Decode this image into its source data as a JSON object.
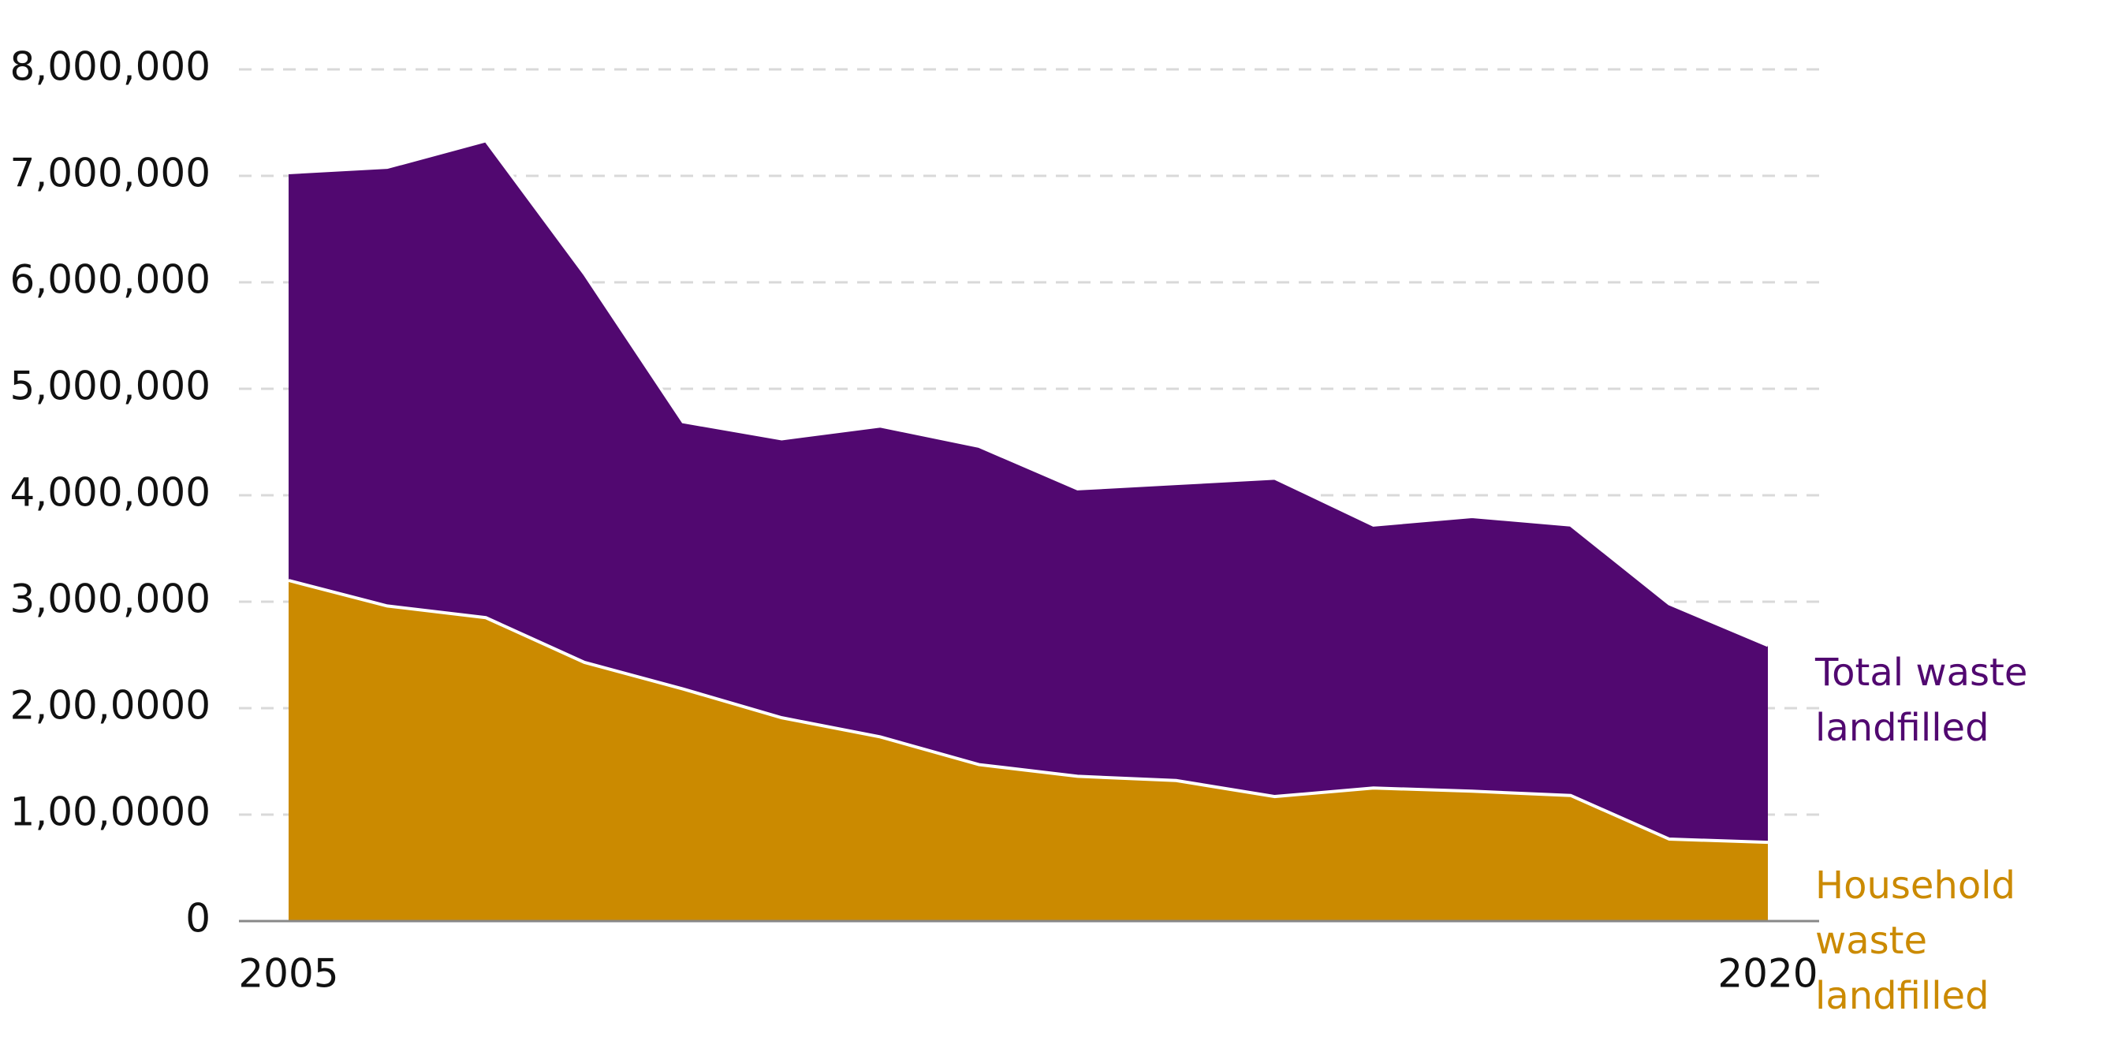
{
  "chart_data": {
    "type": "area",
    "x": [
      2005,
      2006,
      2007,
      2008,
      2009,
      2010,
      2011,
      2012,
      2013,
      2014,
      2015,
      2016,
      2017,
      2018,
      2019,
      2020
    ],
    "xlim": [
      2005,
      2020
    ],
    "xticks": [
      2005,
      2020
    ],
    "ylim": [
      0,
      8000000
    ],
    "yticks": [
      0,
      {
        "value": 1000000,
        "label": "1,00,0000"
      },
      {
        "value": 2000000,
        "label": "2,00,0000"
      },
      {
        "value": 3000000,
        "label": "3,000,000"
      },
      {
        "value": 4000000,
        "label": "4,000,000"
      },
      {
        "value": 5000000,
        "label": "5,000,000"
      },
      {
        "value": 6000000,
        "label": "6,000,000"
      },
      {
        "value": 7000000,
        "label": "7,000,000"
      },
      {
        "value": 8000000,
        "label": "8,000,000"
      }
    ],
    "grid": true,
    "series": [
      {
        "name": "Total waste landfilled",
        "color": "#510870",
        "values": [
          7030000,
          7080000,
          7330000,
          6080000,
          4690000,
          4530000,
          4650000,
          4460000,
          4060000,
          4110000,
          4160000,
          3720000,
          3800000,
          3720000,
          2980000,
          2590000
        ]
      },
      {
        "name": "Household waste landfilled",
        "color": "#cb8a00",
        "values": [
          3200000,
          2960000,
          2850000,
          2430000,
          2180000,
          1910000,
          1730000,
          1470000,
          1360000,
          1320000,
          1170000,
          1250000,
          1220000,
          1180000,
          770000,
          740000
        ]
      }
    ]
  }
}
